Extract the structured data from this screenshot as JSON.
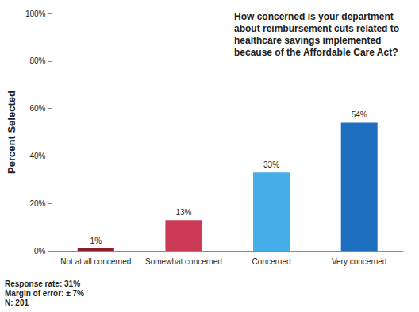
{
  "chart_data": {
    "type": "bar",
    "title": "How concerned is your department about reimbursement cuts related to healthcare savings implemented because of the Affordable Care Act?",
    "y_label": "Percent Selected",
    "categories": [
      "Not at all concerned",
      "Somewhat concerned",
      "Concerned",
      "Very concerned"
    ],
    "values": [
      1,
      13,
      33,
      54
    ],
    "value_labels": [
      "1%",
      "13%",
      "33%",
      "54%"
    ],
    "colors": [
      "#8c1c2e",
      "#cc3a56",
      "#45aee8",
      "#1f6fc0"
    ],
    "ylim": [
      0,
      100
    ],
    "yticks": [
      {
        "value": 0,
        "label": "0%"
      },
      {
        "value": 20,
        "label": "20%"
      },
      {
        "value": 40,
        "label": "40%"
      },
      {
        "value": 60,
        "label": "60%"
      },
      {
        "value": 80,
        "label": "80%"
      },
      {
        "value": 100,
        "label": "100%"
      }
    ],
    "grid": false,
    "data_labels": true,
    "annotations": [
      "Response rate: 31%",
      "Margin of error: ± 7%",
      "N: 201"
    ]
  }
}
